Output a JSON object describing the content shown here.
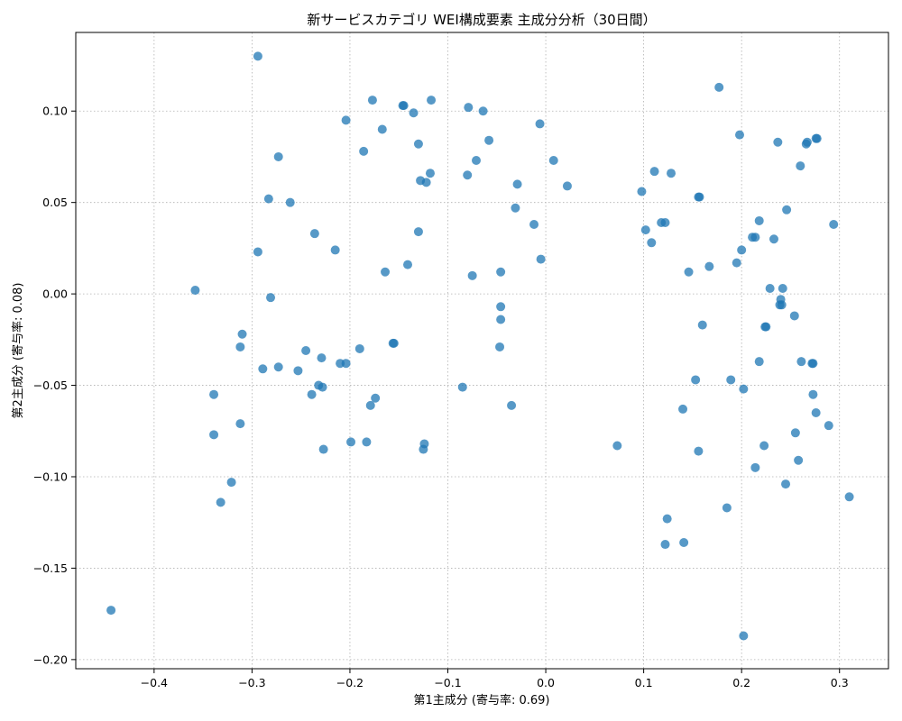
{
  "chart_data": {
    "type": "scatter",
    "title": "新サービスカテゴリ WEI構成要素 主成分分析（30日間）",
    "xlabel": "第1主成分 (寄与率: 0.69)",
    "ylabel": "第2主成分 (寄与率: 0.08)",
    "xlim": [
      -0.48,
      0.35
    ],
    "ylim": [
      -0.205,
      0.143
    ],
    "xticks": [
      -0.4,
      -0.3,
      -0.2,
      -0.1,
      0.0,
      0.1,
      0.2,
      0.3
    ],
    "xtick_labels": [
      "−0.4",
      "−0.3",
      "−0.2",
      "−0.1",
      "0.0",
      "0.1",
      "0.2",
      "0.3"
    ],
    "yticks": [
      -0.2,
      -0.15,
      -0.1,
      -0.05,
      0.0,
      0.05,
      0.1
    ],
    "ytick_labels": [
      "−0.20",
      "−0.15",
      "−0.10",
      "−0.05",
      "0.00",
      "0.05",
      "0.10"
    ],
    "grid": true,
    "color": "#1f77b4",
    "points": [
      [
        -0.294,
        0.13
      ],
      [
        0.177,
        0.113
      ],
      [
        -0.177,
        0.106
      ],
      [
        -0.117,
        0.106
      ],
      [
        -0.146,
        0.103
      ],
      [
        -0.145,
        0.103
      ],
      [
        -0.079,
        0.102
      ],
      [
        -0.064,
        0.1
      ],
      [
        -0.135,
        0.099
      ],
      [
        -0.204,
        0.095
      ],
      [
        -0.006,
        0.093
      ],
      [
        -0.167,
        0.09
      ],
      [
        0.198,
        0.087
      ],
      [
        0.276,
        0.085
      ],
      [
        0.277,
        0.085
      ],
      [
        -0.058,
        0.084
      ],
      [
        0.237,
        0.083
      ],
      [
        -0.13,
        0.082
      ],
      [
        0.266,
        0.082
      ],
      [
        0.267,
        0.083
      ],
      [
        -0.186,
        0.078
      ],
      [
        -0.273,
        0.075
      ],
      [
        -0.071,
        0.073
      ],
      [
        0.008,
        0.073
      ],
      [
        0.26,
        0.07
      ],
      [
        -0.118,
        0.066
      ],
      [
        0.111,
        0.067
      ],
      [
        0.128,
        0.066
      ],
      [
        -0.08,
        0.065
      ],
      [
        -0.128,
        0.062
      ],
      [
        -0.122,
        0.061
      ],
      [
        -0.029,
        0.06
      ],
      [
        0.022,
        0.059
      ],
      [
        0.098,
        0.056
      ],
      [
        -0.283,
        0.052
      ],
      [
        0.156,
        0.053
      ],
      [
        0.157,
        0.053
      ],
      [
        -0.261,
        0.05
      ],
      [
        -0.031,
        0.047
      ],
      [
        0.246,
        0.046
      ],
      [
        0.218,
        0.04
      ],
      [
        0.118,
        0.039
      ],
      [
        0.122,
        0.039
      ],
      [
        -0.012,
        0.038
      ],
      [
        0.294,
        0.038
      ],
      [
        0.102,
        0.035
      ],
      [
        -0.13,
        0.034
      ],
      [
        -0.236,
        0.033
      ],
      [
        0.211,
        0.031
      ],
      [
        0.214,
        0.031
      ],
      [
        0.233,
        0.03
      ],
      [
        0.108,
        0.028
      ],
      [
        -0.215,
        0.024
      ],
      [
        0.2,
        0.024
      ],
      [
        -0.294,
        0.023
      ],
      [
        -0.005,
        0.019
      ],
      [
        0.195,
        0.017
      ],
      [
        -0.141,
        0.016
      ],
      [
        0.167,
        0.015
      ],
      [
        -0.164,
        0.012
      ],
      [
        -0.046,
        0.012
      ],
      [
        0.146,
        0.012
      ],
      [
        -0.075,
        0.01
      ],
      [
        0.229,
        0.003
      ],
      [
        0.242,
        0.003
      ],
      [
        -0.358,
        0.002
      ],
      [
        -0.281,
        -0.002
      ],
      [
        0.24,
        -0.003
      ],
      [
        0.239,
        -0.006
      ],
      [
        0.241,
        -0.006
      ],
      [
        -0.046,
        -0.007
      ],
      [
        0.254,
        -0.012
      ],
      [
        -0.046,
        -0.014
      ],
      [
        0.16,
        -0.017
      ],
      [
        0.224,
        -0.018
      ],
      [
        0.225,
        -0.018
      ],
      [
        -0.31,
        -0.022
      ],
      [
        -0.156,
        -0.027
      ],
      [
        -0.155,
        -0.027
      ],
      [
        -0.047,
        -0.029
      ],
      [
        -0.312,
        -0.029
      ],
      [
        -0.19,
        -0.03
      ],
      [
        -0.245,
        -0.031
      ],
      [
        -0.229,
        -0.035
      ],
      [
        0.218,
        -0.037
      ],
      [
        0.261,
        -0.037
      ],
      [
        0.272,
        -0.038
      ],
      [
        0.273,
        -0.038
      ],
      [
        -0.21,
        -0.038
      ],
      [
        -0.204,
        -0.038
      ],
      [
        -0.273,
        -0.04
      ],
      [
        -0.289,
        -0.041
      ],
      [
        -0.253,
        -0.042
      ],
      [
        0.153,
        -0.047
      ],
      [
        0.189,
        -0.047
      ],
      [
        -0.232,
        -0.05
      ],
      [
        -0.085,
        -0.051
      ],
      [
        -0.228,
        -0.051
      ],
      [
        0.202,
        -0.052
      ],
      [
        -0.339,
        -0.055
      ],
      [
        -0.239,
        -0.055
      ],
      [
        0.273,
        -0.055
      ],
      [
        -0.174,
        -0.057
      ],
      [
        -0.035,
        -0.061
      ],
      [
        -0.179,
        -0.061
      ],
      [
        0.14,
        -0.063
      ],
      [
        0.276,
        -0.065
      ],
      [
        -0.312,
        -0.071
      ],
      [
        0.289,
        -0.072
      ],
      [
        0.255,
        -0.076
      ],
      [
        -0.339,
        -0.077
      ],
      [
        -0.199,
        -0.081
      ],
      [
        -0.183,
        -0.081
      ],
      [
        -0.124,
        -0.082
      ],
      [
        0.073,
        -0.083
      ],
      [
        0.223,
        -0.083
      ],
      [
        -0.227,
        -0.085
      ],
      [
        -0.125,
        -0.085
      ],
      [
        0.156,
        -0.086
      ],
      [
        0.258,
        -0.091
      ],
      [
        0.214,
        -0.095
      ],
      [
        -0.321,
        -0.103
      ],
      [
        0.245,
        -0.104
      ],
      [
        0.31,
        -0.111
      ],
      [
        -0.332,
        -0.114
      ],
      [
        0.185,
        -0.117
      ],
      [
        0.124,
        -0.123
      ],
      [
        0.122,
        -0.137
      ],
      [
        0.141,
        -0.136
      ],
      [
        -0.444,
        -0.173
      ],
      [
        0.202,
        -0.187
      ]
    ]
  }
}
